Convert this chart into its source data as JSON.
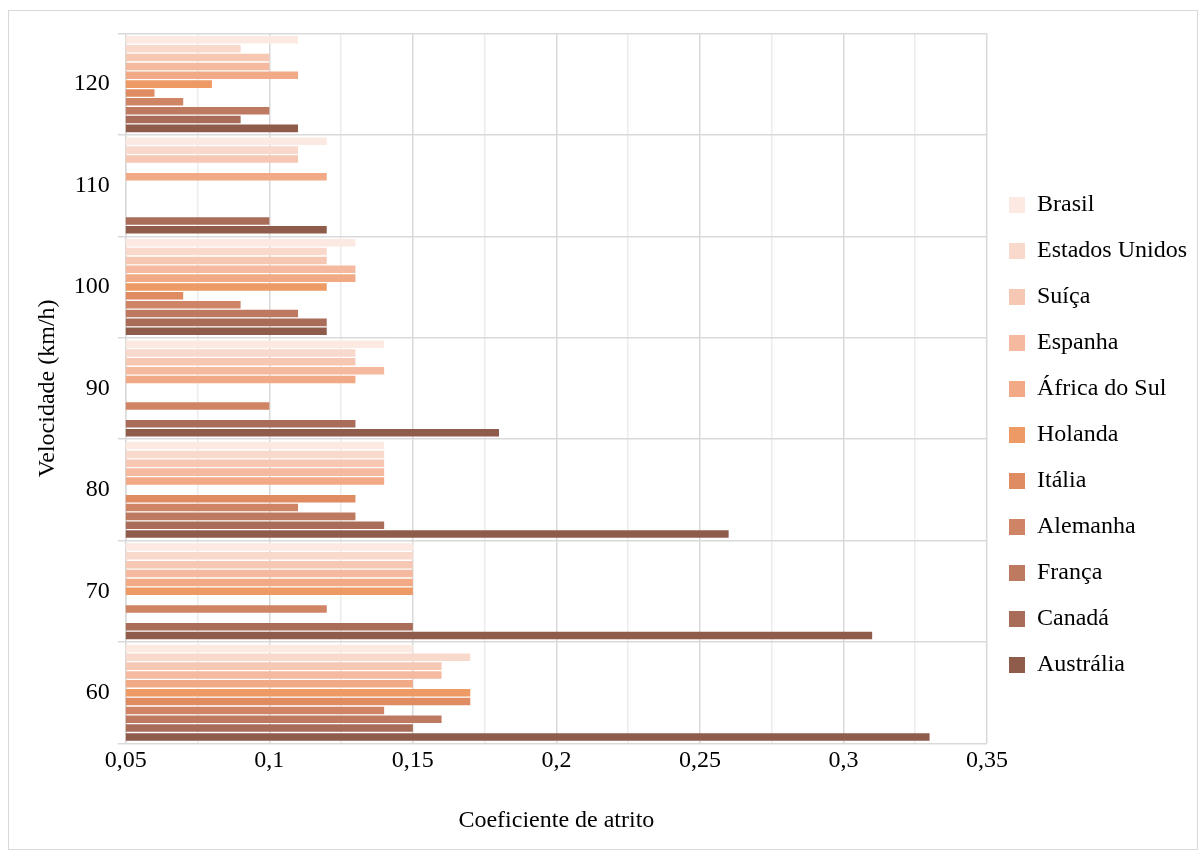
{
  "chart_data": {
    "type": "bar",
    "orientation": "horizontal",
    "xlabel": "Coeficiente de atrito",
    "ylabel": "Velocidade (km/h)",
    "categories": [
      "120",
      "110",
      "100",
      "90",
      "80",
      "70",
      "60"
    ],
    "series": [
      {
        "name": "Brasil",
        "color": "#fce9e2",
        "values": [
          0.11,
          0.12,
          0.13,
          0.14,
          0.14,
          0.15,
          0.15
        ]
      },
      {
        "name": "Estados Unidos",
        "color": "#f9d9cc",
        "values": [
          0.09,
          0.11,
          0.12,
          0.13,
          0.14,
          0.15,
          0.17
        ]
      },
      {
        "name": "Suíça",
        "color": "#f6c8b4",
        "values": [
          0.1,
          0.11,
          0.12,
          0.13,
          0.14,
          0.15,
          0.16
        ]
      },
      {
        "name": "Espanha",
        "color": "#f4b99e",
        "values": [
          0.1,
          null,
          0.13,
          0.14,
          0.14,
          0.15,
          0.16
        ]
      },
      {
        "name": "África do Sul",
        "color": "#f2aa86",
        "values": [
          0.11,
          0.12,
          0.13,
          0.13,
          0.14,
          0.15,
          0.15
        ]
      },
      {
        "name": "Holanda",
        "color": "#ee9a64",
        "values": [
          0.08,
          null,
          0.12,
          null,
          null,
          0.15,
          0.17
        ]
      },
      {
        "name": "Itália",
        "color": "#e08c62",
        "values": [
          0.06,
          null,
          0.07,
          null,
          0.13,
          null,
          0.17
        ]
      },
      {
        "name": "Alemanha",
        "color": "#cf8466",
        "values": [
          0.07,
          null,
          0.09,
          0.1,
          0.11,
          0.12,
          0.14
        ]
      },
      {
        "name": "França",
        "color": "#bd7a60",
        "values": [
          0.1,
          null,
          0.11,
          null,
          0.13,
          null,
          0.16
        ]
      },
      {
        "name": "Canadá",
        "color": "#a86c58",
        "values": [
          0.09,
          0.1,
          0.12,
          0.13,
          0.14,
          0.15,
          0.15
        ]
      },
      {
        "name": "Austrália",
        "color": "#8f5c4c",
        "values": [
          0.11,
          0.12,
          0.12,
          0.18,
          0.26,
          0.31,
          0.33
        ]
      }
    ],
    "xlim": [
      0.05,
      0.35
    ],
    "xticks": [
      {
        "value": 0.05,
        "label": "0,05"
      },
      {
        "value": 0.075,
        "label": null
      },
      {
        "value": 0.1,
        "label": "0,1"
      },
      {
        "value": 0.125,
        "label": null
      },
      {
        "value": 0.15,
        "label": "0,15"
      },
      {
        "value": 0.175,
        "label": null
      },
      {
        "value": 0.2,
        "label": "0,2"
      },
      {
        "value": 0.225,
        "label": null
      },
      {
        "value": 0.25,
        "label": "0,25"
      },
      {
        "value": 0.275,
        "label": null
      },
      {
        "value": 0.3,
        "label": "0,3"
      },
      {
        "value": 0.325,
        "label": null
      },
      {
        "value": 0.35,
        "label": "0,35"
      }
    ],
    "grid": true,
    "legend": "right"
  }
}
